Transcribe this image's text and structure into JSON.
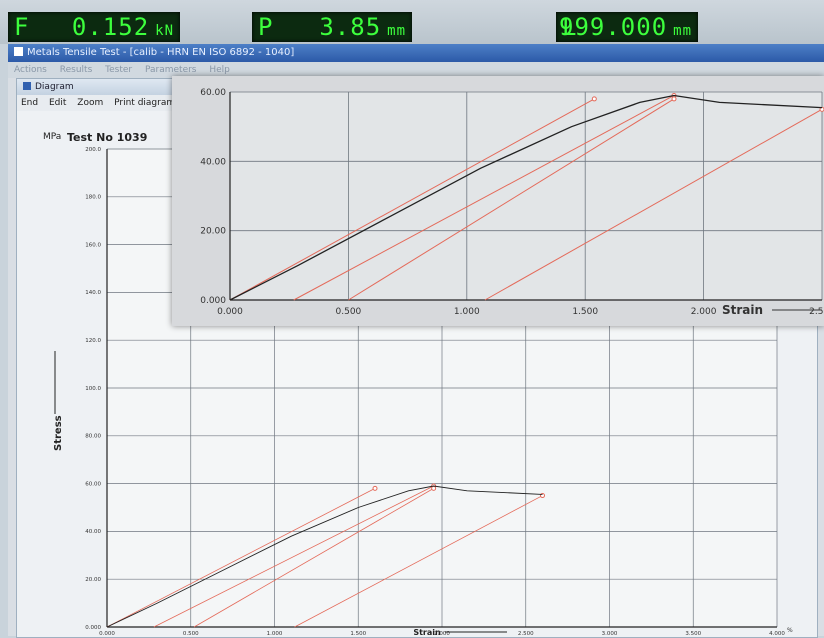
{
  "readouts": {
    "force": {
      "label": "F",
      "value": "0.152",
      "unit": "kN"
    },
    "position": {
      "label": "P",
      "value": "3.85",
      "unit": "mm"
    },
    "length": {
      "label": "L",
      "value": "-999.000",
      "unit": "mm"
    }
  },
  "main_window": {
    "title": "Metals Tensile Test - [calib - HRN EN ISO 6892 - 1040]",
    "menu": [
      "Actions",
      "Results",
      "Tester",
      "Parameters",
      "Help"
    ]
  },
  "diagram_window": {
    "title": "Diagram",
    "menu": [
      "End",
      "Edit",
      "Zoom",
      "Print diagram"
    ]
  },
  "colors": {
    "curve": "#222222",
    "offset_lines": "#e46a5a",
    "grid": "#6f7780",
    "lcd_text": "#3dff3d"
  },
  "chart_data": [
    {
      "type": "line",
      "unit_label": "MPa",
      "title": "Test No  1039",
      "ylabel": "Stress",
      "xlabel": "Strain",
      "x_unit": "%",
      "xlim": [
        0,
        4.0
      ],
      "ylim": [
        0,
        200
      ],
      "x_ticks": [
        "0.000",
        "0.500",
        "1.000",
        "1.500",
        "2.000",
        "2.500",
        "3.000",
        "3.500",
        "4.000"
      ],
      "y_ticks": [
        "0.000",
        "20.00",
        "40.00",
        "60.00",
        "80.00",
        "100.0",
        "120.0",
        "140.0",
        "160.0",
        "180.0",
        "200.0"
      ],
      "grid": true,
      "series": [
        {
          "values": [
            [
              0.0,
              0
            ],
            [
              0.3,
              10
            ],
            [
              0.7,
              24
            ],
            [
              1.1,
              38
            ],
            [
              1.5,
              50
            ],
            [
              1.8,
              57
            ],
            [
              1.95,
              59
            ],
            [
              2.15,
              57
            ],
            [
              2.6,
              55.5
            ]
          ]
        }
      ],
      "offset_lines": [
        {
          "x": [
            0.0,
            1.6
          ],
          "y": [
            0,
            58
          ]
        },
        {
          "x": [
            0.28,
            1.95
          ],
          "y": [
            0,
            59
          ]
        },
        {
          "x": [
            0.52,
            1.95
          ],
          "y": [
            0,
            58
          ]
        },
        {
          "x": [
            1.12,
            2.6
          ],
          "y": [
            0,
            55
          ]
        }
      ]
    },
    {
      "type": "line",
      "xlabel": "Strain",
      "xlim": [
        0,
        2.6
      ],
      "ylim": [
        0,
        60
      ],
      "x_ticks": [
        "0.000",
        "0.500",
        "1.000",
        "1.500",
        "2.000",
        "2.500"
      ],
      "y_ticks": [
        "0.000",
        "20.00",
        "40.00",
        "60.00"
      ],
      "grid": true,
      "series": [
        {
          "values": [
            [
              0.0,
              0
            ],
            [
              0.3,
              10
            ],
            [
              0.7,
              24
            ],
            [
              1.1,
              38
            ],
            [
              1.5,
              50
            ],
            [
              1.8,
              57
            ],
            [
              1.95,
              59
            ],
            [
              2.15,
              57
            ],
            [
              2.6,
              55.5
            ]
          ]
        }
      ],
      "offset_lines": [
        {
          "x": [
            0.0,
            1.6
          ],
          "y": [
            0,
            58
          ]
        },
        {
          "x": [
            0.28,
            1.95
          ],
          "y": [
            0,
            59
          ]
        },
        {
          "x": [
            0.52,
            1.95
          ],
          "y": [
            0,
            58
          ]
        },
        {
          "x": [
            1.12,
            2.6
          ],
          "y": [
            0,
            55
          ]
        }
      ]
    }
  ]
}
